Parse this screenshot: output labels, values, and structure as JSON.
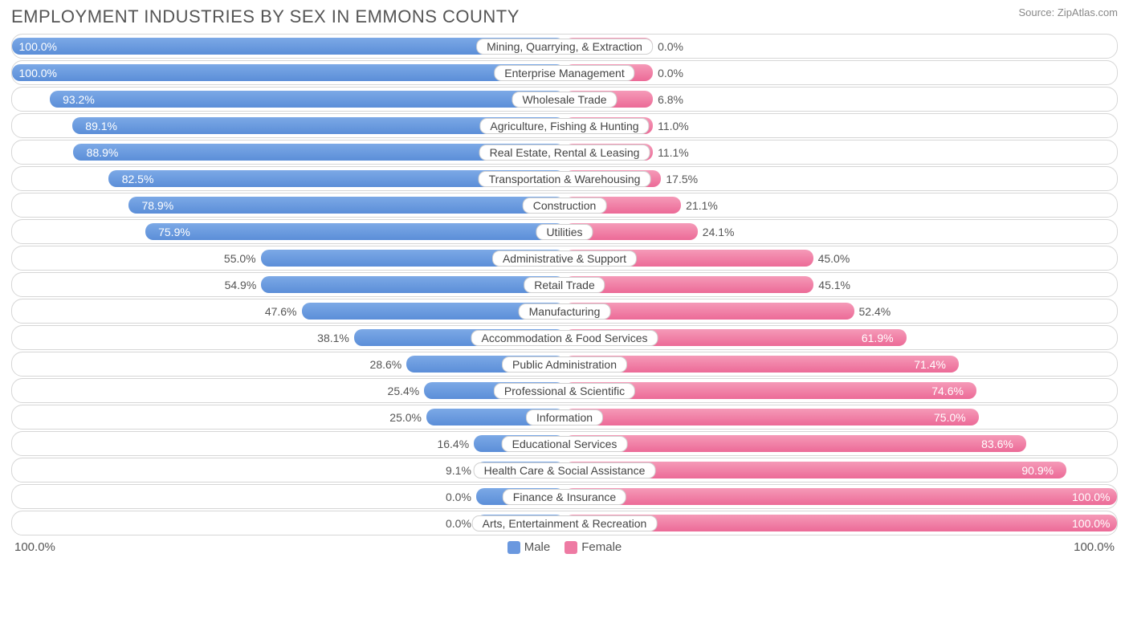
{
  "title": "EMPLOYMENT INDUSTRIES BY SEX IN EMMONS COUNTY",
  "source": "Source: ZipAtlas.com",
  "chart": {
    "type": "diverging-bar",
    "male_color_top": "#7ca9e6",
    "male_color_bottom": "#5b8ed8",
    "female_color_top": "#f59ab8",
    "female_color_bottom": "#ec6a97",
    "track_border": "#d6d6d6",
    "text_color": "#555555",
    "label_bg": "#ffffff",
    "label_border": "#d0d0d0",
    "min_bar_pct": 8,
    "axis_left": "100.0%",
    "axis_right": "100.0%",
    "legend": {
      "male": "Male",
      "female": "Female"
    },
    "fontsize_title": 22,
    "fontsize_values": 14,
    "fontsize_category": 14,
    "categories": [
      {
        "label": "Mining, Quarrying, & Extraction",
        "male": 100.0,
        "female": 0.0
      },
      {
        "label": "Enterprise Management",
        "male": 100.0,
        "female": 0.0
      },
      {
        "label": "Wholesale Trade",
        "male": 93.2,
        "female": 6.8
      },
      {
        "label": "Agriculture, Fishing & Hunting",
        "male": 89.1,
        "female": 11.0
      },
      {
        "label": "Real Estate, Rental & Leasing",
        "male": 88.9,
        "female": 11.1
      },
      {
        "label": "Transportation & Warehousing",
        "male": 82.5,
        "female": 17.5
      },
      {
        "label": "Construction",
        "male": 78.9,
        "female": 21.1
      },
      {
        "label": "Utilities",
        "male": 75.9,
        "female": 24.1
      },
      {
        "label": "Administrative & Support",
        "male": 55.0,
        "female": 45.0
      },
      {
        "label": "Retail Trade",
        "male": 54.9,
        "female": 45.1
      },
      {
        "label": "Manufacturing",
        "male": 47.6,
        "female": 52.4
      },
      {
        "label": "Accommodation & Food Services",
        "male": 38.1,
        "female": 61.9
      },
      {
        "label": "Public Administration",
        "male": 28.6,
        "female": 71.4
      },
      {
        "label": "Professional & Scientific",
        "male": 25.4,
        "female": 74.6
      },
      {
        "label": "Information",
        "male": 25.0,
        "female": 75.0
      },
      {
        "label": "Educational Services",
        "male": 16.4,
        "female": 83.6
      },
      {
        "label": "Health Care & Social Assistance",
        "male": 9.1,
        "female": 90.9
      },
      {
        "label": "Finance & Insurance",
        "male": 0.0,
        "female": 100.0
      },
      {
        "label": "Arts, Entertainment & Recreation",
        "male": 0.0,
        "female": 100.0
      }
    ]
  }
}
